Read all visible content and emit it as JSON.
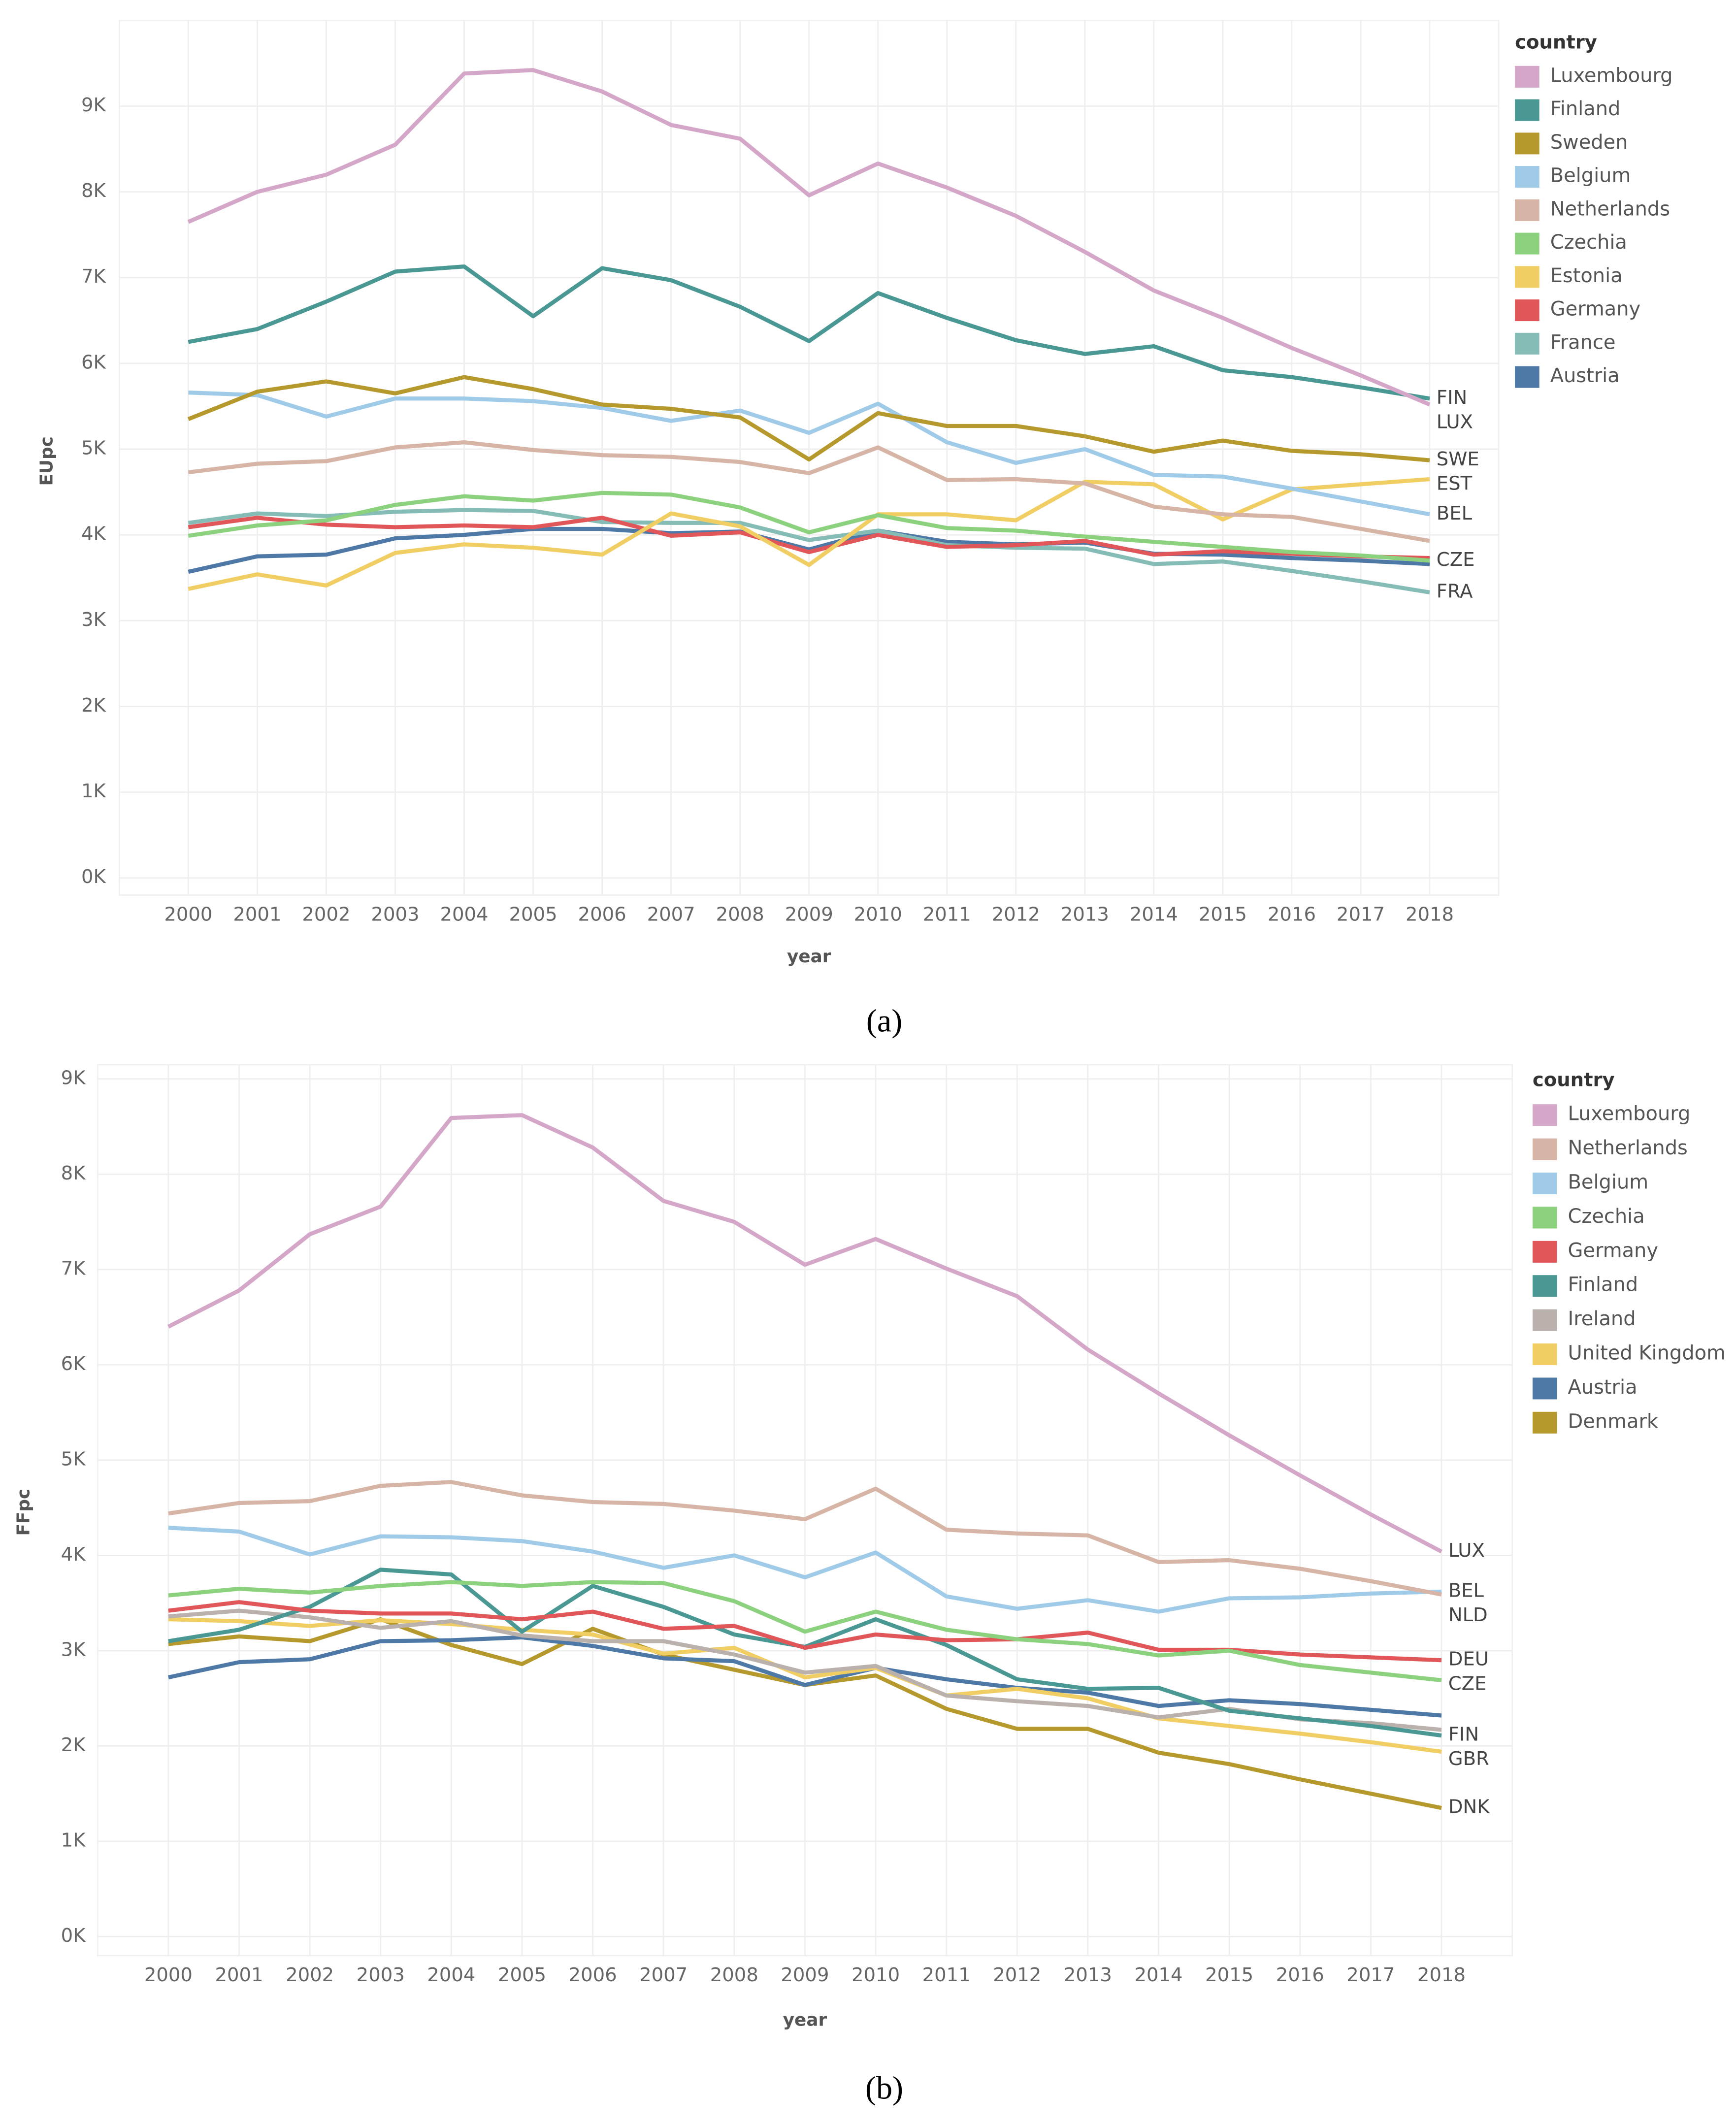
{
  "chart_data": [
    {
      "type": "line",
      "panel_label": "(a)",
      "x_label": "year",
      "y_label": "EUpc",
      "legend_title": "country",
      "categories": [
        "2000",
        "2001",
        "2002",
        "2003",
        "2004",
        "2005",
        "2006",
        "2007",
        "2008",
        "2009",
        "2010",
        "2011",
        "2012",
        "2013",
        "2014",
        "2015",
        "2016",
        "2017",
        "2018"
      ],
      "ylim": [
        -200,
        10000
      ],
      "yticks": [
        {
          "value": 0,
          "label": "0K"
        },
        {
          "value": 1000,
          "label": "1K"
        },
        {
          "value": 2000,
          "label": "2K"
        },
        {
          "value": 3000,
          "label": "3K"
        },
        {
          "value": 4000,
          "label": "4K"
        },
        {
          "value": 5000,
          "label": "5K"
        },
        {
          "value": 6000,
          "label": "6K"
        },
        {
          "value": 7000,
          "label": "7K"
        },
        {
          "value": 8000,
          "label": "8K"
        },
        {
          "value": 9000,
          "label": "9K"
        }
      ],
      "grid": true,
      "series": [
        {
          "name": "Luxembourg",
          "color": "#d4a6c8",
          "end_label": "LUX",
          "values": [
            7650,
            8000,
            8200,
            8550,
            9380,
            9420,
            9170,
            8780,
            8620,
            7960,
            8330,
            8050,
            7720,
            7300,
            6850,
            6530,
            6180,
            5860,
            5520
          ]
        },
        {
          "name": "Finland",
          "color": "#499894",
          "end_label": "FIN",
          "values": [
            6250,
            6400,
            6720,
            7070,
            7130,
            6550,
            7110,
            6970,
            6660,
            6260,
            6820,
            6530,
            6270,
            6110,
            6200,
            5920,
            5840,
            5720,
            5590
          ]
        },
        {
          "name": "Sweden",
          "color": "#b6992d",
          "end_label": "SWE",
          "values": [
            5350,
            5670,
            5790,
            5650,
            5840,
            5700,
            5520,
            5470,
            5370,
            4880,
            5420,
            5270,
            5270,
            5150,
            4970,
            5100,
            4980,
            4940,
            4870
          ]
        },
        {
          "name": "Belgium",
          "color": "#a0cbe8",
          "end_label": "BEL",
          "values": [
            5660,
            5630,
            5380,
            5590,
            5590,
            5560,
            5480,
            5330,
            5450,
            5190,
            5530,
            5080,
            4840,
            5000,
            4700,
            4680,
            4540,
            4390,
            4240
          ]
        },
        {
          "name": "Netherlands",
          "color": "#d7b5a6",
          "values": [
            4730,
            4830,
            4860,
            5020,
            5080,
            4990,
            4930,
            4910,
            4850,
            4720,
            5020,
            4640,
            4650,
            4600,
            4330,
            4240,
            4210,
            4070,
            3930
          ]
        },
        {
          "name": "Czechia",
          "color": "#8cd17d",
          "end_label": "CZE",
          "values": [
            3990,
            4110,
            4170,
            4350,
            4450,
            4400,
            4490,
            4470,
            4320,
            4030,
            4230,
            4080,
            4050,
            3980,
            3920,
            3860,
            3800,
            3760,
            3700
          ]
        },
        {
          "name": "Estonia",
          "color": "#f1ce63",
          "end_label": "EST",
          "values": [
            3370,
            3540,
            3410,
            3790,
            3890,
            3850,
            3770,
            4250,
            4100,
            3650,
            4240,
            4240,
            4170,
            4620,
            4590,
            4180,
            4530,
            4590,
            4650
          ]
        },
        {
          "name": "Germany",
          "color": "#e15759",
          "values": [
            4090,
            4200,
            4120,
            4090,
            4110,
            4090,
            4200,
            3990,
            4030,
            3800,
            4000,
            3860,
            3880,
            3930,
            3770,
            3810,
            3780,
            3750,
            3730
          ]
        },
        {
          "name": "France",
          "color": "#86bcb6",
          "end_label": "FRA",
          "values": [
            4140,
            4250,
            4220,
            4270,
            4290,
            4280,
            4150,
            4140,
            4140,
            3940,
            4050,
            3880,
            3850,
            3840,
            3660,
            3690,
            3580,
            3460,
            3330
          ]
        },
        {
          "name": "Austria",
          "color": "#4e79a7",
          "values": [
            3570,
            3750,
            3770,
            3960,
            4000,
            4070,
            4070,
            4020,
            4040,
            3830,
            4050,
            3920,
            3890,
            3910,
            3780,
            3770,
            3730,
            3700,
            3660
          ]
        }
      ]
    },
    {
      "type": "line",
      "panel_label": "(b)",
      "x_label": "year",
      "y_label": "FFpc",
      "legend_title": "country",
      "categories": [
        "2000",
        "2001",
        "2002",
        "2003",
        "2004",
        "2005",
        "2006",
        "2007",
        "2008",
        "2009",
        "2010",
        "2011",
        "2012",
        "2013",
        "2014",
        "2015",
        "2016",
        "2017",
        "2018"
      ],
      "ylim": [
        -200,
        9150
      ],
      "yticks": [
        {
          "value": 0,
          "label": "0K"
        },
        {
          "value": 1000,
          "label": "1K"
        },
        {
          "value": 2000,
          "label": "2K"
        },
        {
          "value": 3000,
          "label": "3K"
        },
        {
          "value": 4000,
          "label": "4K"
        },
        {
          "value": 5000,
          "label": "5K"
        },
        {
          "value": 6000,
          "label": "6K"
        },
        {
          "value": 7000,
          "label": "7K"
        },
        {
          "value": 8000,
          "label": "8K"
        },
        {
          "value": 9000,
          "label": "9K"
        }
      ],
      "grid": true,
      "series": [
        {
          "name": "Luxembourg",
          "color": "#d4a6c8",
          "end_label": "LUX",
          "values": [
            6400,
            6780,
            7370,
            7660,
            8590,
            8620,
            8280,
            7720,
            7500,
            7050,
            7320,
            7010,
            6720,
            6160,
            5700,
            5260,
            4840,
            4430,
            4040
          ]
        },
        {
          "name": "Netherlands",
          "color": "#d7b5a6",
          "end_label": "NLD",
          "values": [
            4440,
            4550,
            4570,
            4730,
            4770,
            4630,
            4560,
            4540,
            4470,
            4380,
            4700,
            4270,
            4230,
            4210,
            3930,
            3950,
            3860,
            3730,
            3590
          ]
        },
        {
          "name": "Belgium",
          "color": "#a0cbe8",
          "end_label": "BEL",
          "values": [
            4290,
            4250,
            4010,
            4200,
            4190,
            4150,
            4040,
            3870,
            4000,
            3770,
            4030,
            3570,
            3440,
            3530,
            3410,
            3550,
            3560,
            3600,
            3620
          ]
        },
        {
          "name": "Czechia",
          "color": "#8cd17d",
          "end_label": "CZE",
          "values": [
            3580,
            3650,
            3610,
            3680,
            3720,
            3680,
            3720,
            3710,
            3520,
            3200,
            3410,
            3220,
            3120,
            3070,
            2950,
            3000,
            2850,
            2770,
            2690
          ]
        },
        {
          "name": "Germany",
          "color": "#e15759",
          "end_label": "DEU",
          "values": [
            3420,
            3510,
            3420,
            3390,
            3390,
            3330,
            3410,
            3230,
            3260,
            3030,
            3170,
            3110,
            3120,
            3190,
            3010,
            3010,
            2960,
            2930,
            2900
          ]
        },
        {
          "name": "Finland",
          "color": "#499894",
          "end_label": "FIN",
          "values": [
            3100,
            3220,
            3460,
            3850,
            3800,
            3200,
            3680,
            3460,
            3170,
            3040,
            3330,
            3060,
            2700,
            2600,
            2610,
            2370,
            2290,
            2210,
            2110
          ]
        },
        {
          "name": "Ireland",
          "color": "#bab0ac",
          "values": [
            3360,
            3420,
            3350,
            3240,
            3310,
            3160,
            3100,
            3100,
            2960,
            2770,
            2840,
            2530,
            2470,
            2420,
            2300,
            2390,
            2280,
            2240,
            2170
          ]
        },
        {
          "name": "United Kingdom",
          "color": "#f1ce63",
          "end_label": "GBR",
          "values": [
            3330,
            3310,
            3260,
            3320,
            3280,
            3220,
            3170,
            2970,
            3030,
            2720,
            2820,
            2530,
            2600,
            2500,
            2290,
            2210,
            2130,
            2040,
            1940
          ]
        },
        {
          "name": "Austria",
          "color": "#4e79a7",
          "values": [
            2720,
            2880,
            2910,
            3100,
            3110,
            3140,
            3050,
            2920,
            2890,
            2640,
            2820,
            2700,
            2610,
            2560,
            2420,
            2480,
            2440,
            2380,
            2320
          ]
        },
        {
          "name": "Denmark",
          "color": "#b6992d",
          "end_label": "DNK",
          "values": [
            3070,
            3150,
            3100,
            3330,
            3060,
            2860,
            3230,
            2960,
            2800,
            2640,
            2740,
            2390,
            2180,
            2180,
            1930,
            1810,
            1650,
            1500,
            1350
          ]
        }
      ]
    }
  ]
}
